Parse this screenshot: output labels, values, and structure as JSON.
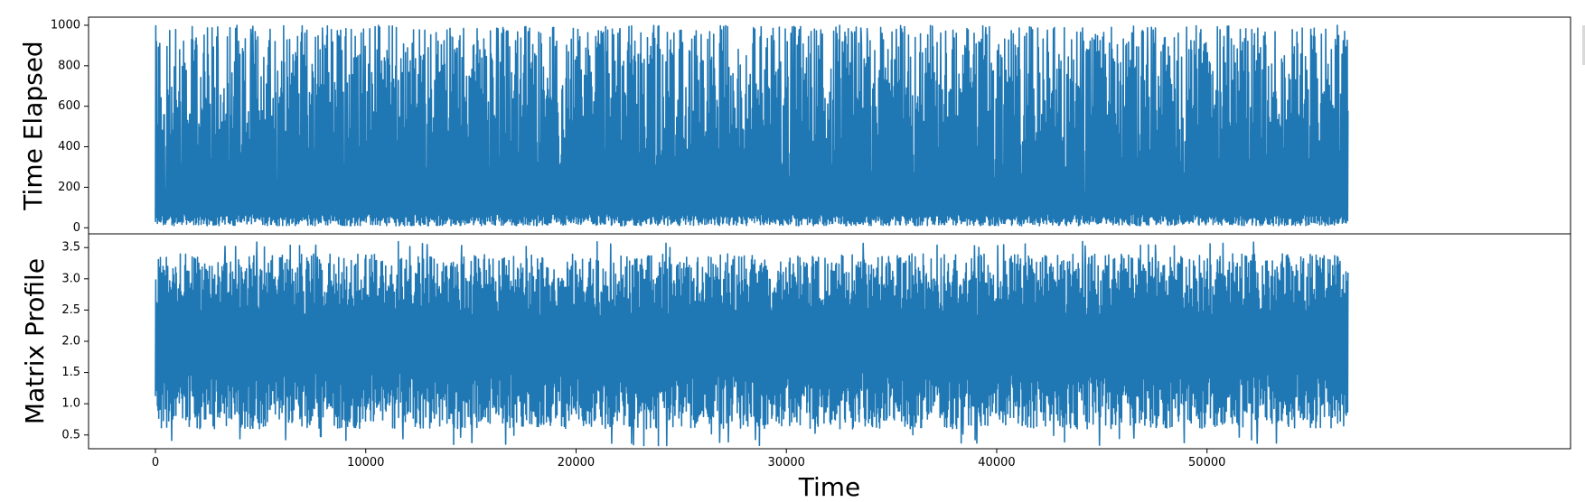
{
  "chart_data": {
    "type": "line",
    "xlabel": "Time",
    "x_range": [
      0,
      56700
    ],
    "x_ticks": [
      0,
      10000,
      20000,
      30000,
      40000,
      50000
    ],
    "x_tick_labels": [
      "0",
      "10000",
      "20000",
      "30000",
      "40000",
      "50000"
    ],
    "color": "#1f77b4",
    "panels": [
      {
        "ylabel": "Time Elapsed",
        "ylim": [
          -30,
          1040
        ],
        "y_ticks": [
          0,
          200,
          400,
          600,
          800,
          1000
        ],
        "y_tick_labels": [
          "0",
          "200",
          "400",
          "600",
          "800",
          "1000"
        ],
        "value_range": [
          0,
          1000
        ]
      },
      {
        "ylabel": "Matrix Profile",
        "ylim": [
          0.28,
          3.72
        ],
        "y_ticks": [
          0.5,
          1.0,
          1.5,
          2.0,
          2.5,
          3.0,
          3.5
        ],
        "y_tick_labels": [
          "0.5",
          "1.0",
          "1.5",
          "2.0",
          "2.5",
          "3.0",
          "3.5"
        ],
        "value_range": [
          0.33,
          3.6
        ]
      }
    ]
  }
}
